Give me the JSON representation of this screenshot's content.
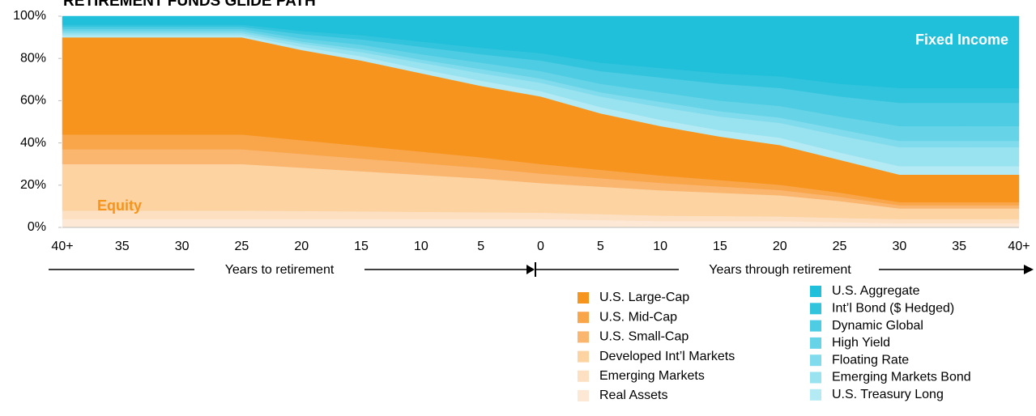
{
  "chart_data": {
    "type": "stacked_area",
    "title": "RETIREMENT FUNDS GLIDE PATH",
    "annotations": [
      "Fixed Income",
      "Equity"
    ],
    "x_axis_labels": [
      "Years to retirement",
      "Years through retirement"
    ],
    "categories": [
      "40+",
      "35",
      "30",
      "25",
      "20",
      "15",
      "10",
      "5",
      "0",
      "5",
      "10",
      "15",
      "20",
      "25",
      "30",
      "35",
      "40+"
    ],
    "ylim": [
      0,
      100
    ],
    "yticks": [
      {
        "value": 0,
        "label": "0%"
      },
      {
        "value": 20,
        "label": "20%"
      },
      {
        "value": 40,
        "label": "40%"
      },
      {
        "value": 60,
        "label": "60%"
      },
      {
        "value": 80,
        "label": "80%"
      },
      {
        "value": 100,
        "label": "100%"
      }
    ],
    "series": [
      {
        "name": "Real Assets",
        "color": "#fde8d6",
        "values": [
          4,
          4,
          4,
          4,
          4,
          4,
          4,
          4,
          4,
          3.5,
          3,
          3,
          3,
          2.5,
          2,
          2,
          2
        ]
      },
      {
        "name": "Emerging Markets",
        "color": "#fde0c2",
        "values": [
          4,
          4,
          4,
          4,
          3.8,
          3.6,
          3.4,
          3.2,
          3,
          2.8,
          2.6,
          2.4,
          2.2,
          2,
          2,
          2,
          2
        ]
      },
      {
        "name": "Developed Int’l Markets",
        "color": "#fcd3a1",
        "values": [
          22,
          22,
          22,
          22,
          20.5,
          19,
          17.5,
          16,
          14,
          13,
          12,
          11,
          10,
          8,
          5,
          5,
          5
        ]
      },
      {
        "name": "U.S. Small-Cap",
        "color": "#fab56f",
        "values": [
          7,
          7,
          7,
          7,
          6.5,
          6,
          5.5,
          5,
          4.5,
          4,
          3.5,
          3,
          2.5,
          2,
          1.5,
          1.5,
          1.5
        ]
      },
      {
        "name": "U.S. Mid-Cap",
        "color": "#f9a54a",
        "values": [
          7,
          7,
          7,
          7,
          6.5,
          6,
          5.5,
          5,
          4.5,
          4,
          3.5,
          3,
          2.5,
          2,
          1.5,
          1.5,
          1.5
        ]
      },
      {
        "name": "U.S. Large-Cap",
        "color": "#f7941d",
        "values": [
          46,
          46,
          46,
          46,
          42.7,
          40.4,
          37.1,
          33.8,
          32,
          26.7,
          23.4,
          20.6,
          18.8,
          15.5,
          13,
          13,
          13
        ]
      },
      {
        "name": "U.S. Treasury Long",
        "color": "#b3eaf4",
        "values": [
          1,
          1,
          1,
          1,
          1.5,
          2,
          2,
          2.5,
          2.5,
          3,
          3,
          3,
          3.5,
          3.5,
          4,
          4,
          4
        ]
      },
      {
        "name": "Emerging Markets Bond",
        "color": "#99e2f0",
        "values": [
          1,
          1,
          1,
          1,
          1.5,
          2,
          3,
          3.5,
          4,
          5,
          6,
          6.5,
          7,
          8,
          9,
          9,
          9
        ]
      },
      {
        "name": "Floating Rate",
        "color": "#80dbec",
        "values": [
          1,
          1,
          1,
          1,
          1,
          1.5,
          1.5,
          2,
          2,
          2,
          2.5,
          2.5,
          2.5,
          3,
          3,
          3,
          3
        ]
      },
      {
        "name": "High Yield",
        "color": "#66d3e7",
        "values": [
          1,
          1,
          1,
          1,
          1.5,
          2,
          2.5,
          3,
          3.5,
          4,
          4.5,
          5,
          5.5,
          6,
          7,
          7,
          7
        ]
      },
      {
        "name": "Dynamic Global",
        "color": "#4dcce3",
        "values": [
          1,
          1,
          1,
          1,
          2,
          2.5,
          3.5,
          4,
          5,
          6,
          7,
          8,
          8.5,
          9.5,
          11,
          11,
          11
        ]
      },
      {
        "name": "Int’l Bond ($ Hedged)",
        "color": "#33c4dd",
        "values": [
          1,
          1,
          1,
          1,
          1.5,
          2,
          2.5,
          3,
          3.5,
          4,
          4.5,
          5,
          5.5,
          6,
          7,
          7,
          7
        ]
      },
      {
        "name": "U.S. Aggregate",
        "color": "#20bfda",
        "values": [
          4,
          4,
          4,
          4,
          7,
          9,
          12,
          15,
          17.5,
          22,
          24.5,
          27,
          28.5,
          32,
          34,
          34,
          34
        ]
      }
    ]
  }
}
